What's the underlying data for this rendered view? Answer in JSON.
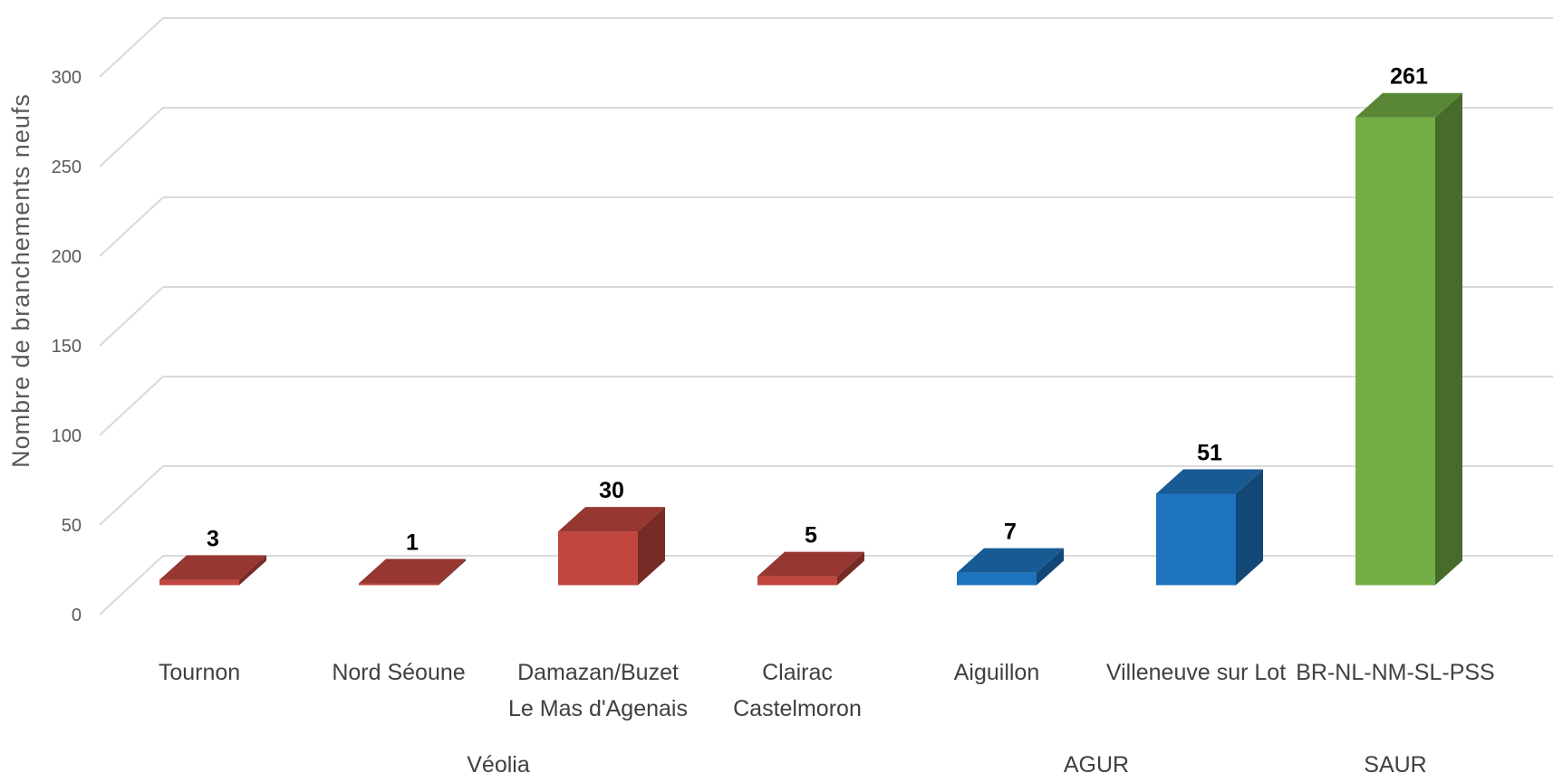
{
  "chart_data": {
    "type": "bar",
    "style": "3d-column",
    "ylabel": "Nombre de branchements neufs",
    "ylim": [
      0,
      300
    ],
    "yticks": [
      0,
      50,
      100,
      150,
      200,
      250,
      300
    ],
    "grid": true,
    "categories": [
      [
        "Tournon"
      ],
      [
        "Nord Séoune"
      ],
      [
        "Damazan/Buzet",
        "Le Mas d'Agenais"
      ],
      [
        "Clairac",
        "Castelmoron"
      ],
      [
        "Aiguillon"
      ],
      [
        "Villeneuve sur Lot"
      ],
      [
        "BR-NL-NM-SL-PSS"
      ]
    ],
    "values": [
      3,
      1,
      30,
      5,
      7,
      51,
      261
    ],
    "groups": [
      {
        "name": "Véolia",
        "count": 4,
        "color": "#C0463F"
      },
      {
        "name": "AGUR",
        "count": 2,
        "color": "#1E73BE"
      },
      {
        "name": "SAUR",
        "count": 1,
        "color": "#73AD45"
      }
    ]
  }
}
